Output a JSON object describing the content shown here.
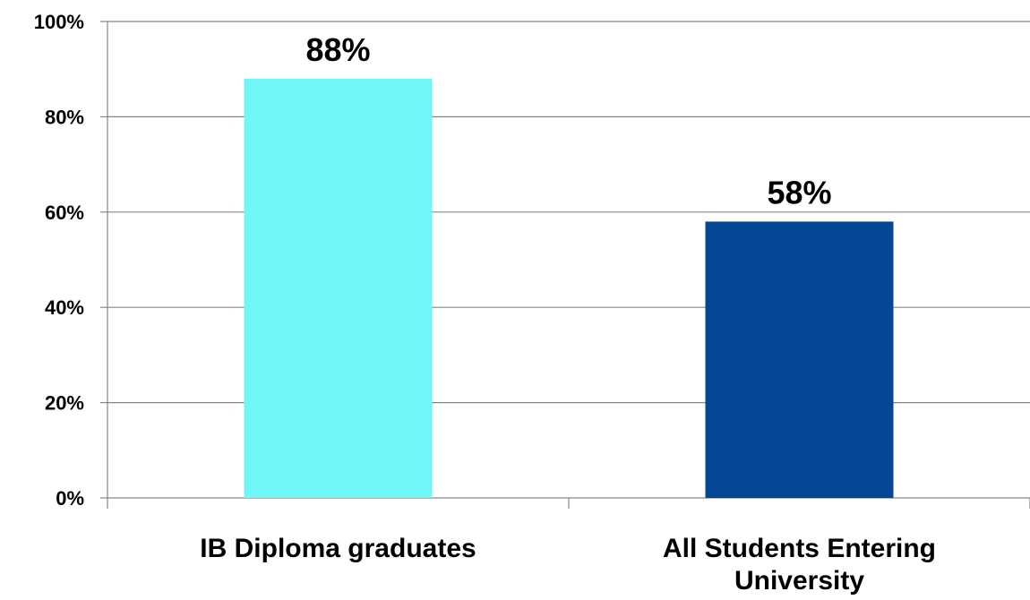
{
  "chart_data": {
    "type": "bar",
    "title": "",
    "xlabel": "",
    "ylabel": "",
    "categories": [
      "IB Diploma graduates",
      "All Students Entering University"
    ],
    "category_lines": [
      [
        "IB Diploma graduates"
      ],
      [
        "All Students Entering",
        "University"
      ]
    ],
    "values": [
      88,
      58
    ],
    "data_labels": [
      "88%",
      "58%"
    ],
    "colors": [
      "#6FF6F6",
      "#034693"
    ],
    "ylim": [
      0,
      100
    ],
    "yticks": [
      0,
      20,
      40,
      60,
      80,
      100
    ],
    "ytick_labels": [
      "0%",
      "20%",
      "40%",
      "60%",
      "80%",
      "100%"
    ],
    "grid": true,
    "legend": "none"
  }
}
